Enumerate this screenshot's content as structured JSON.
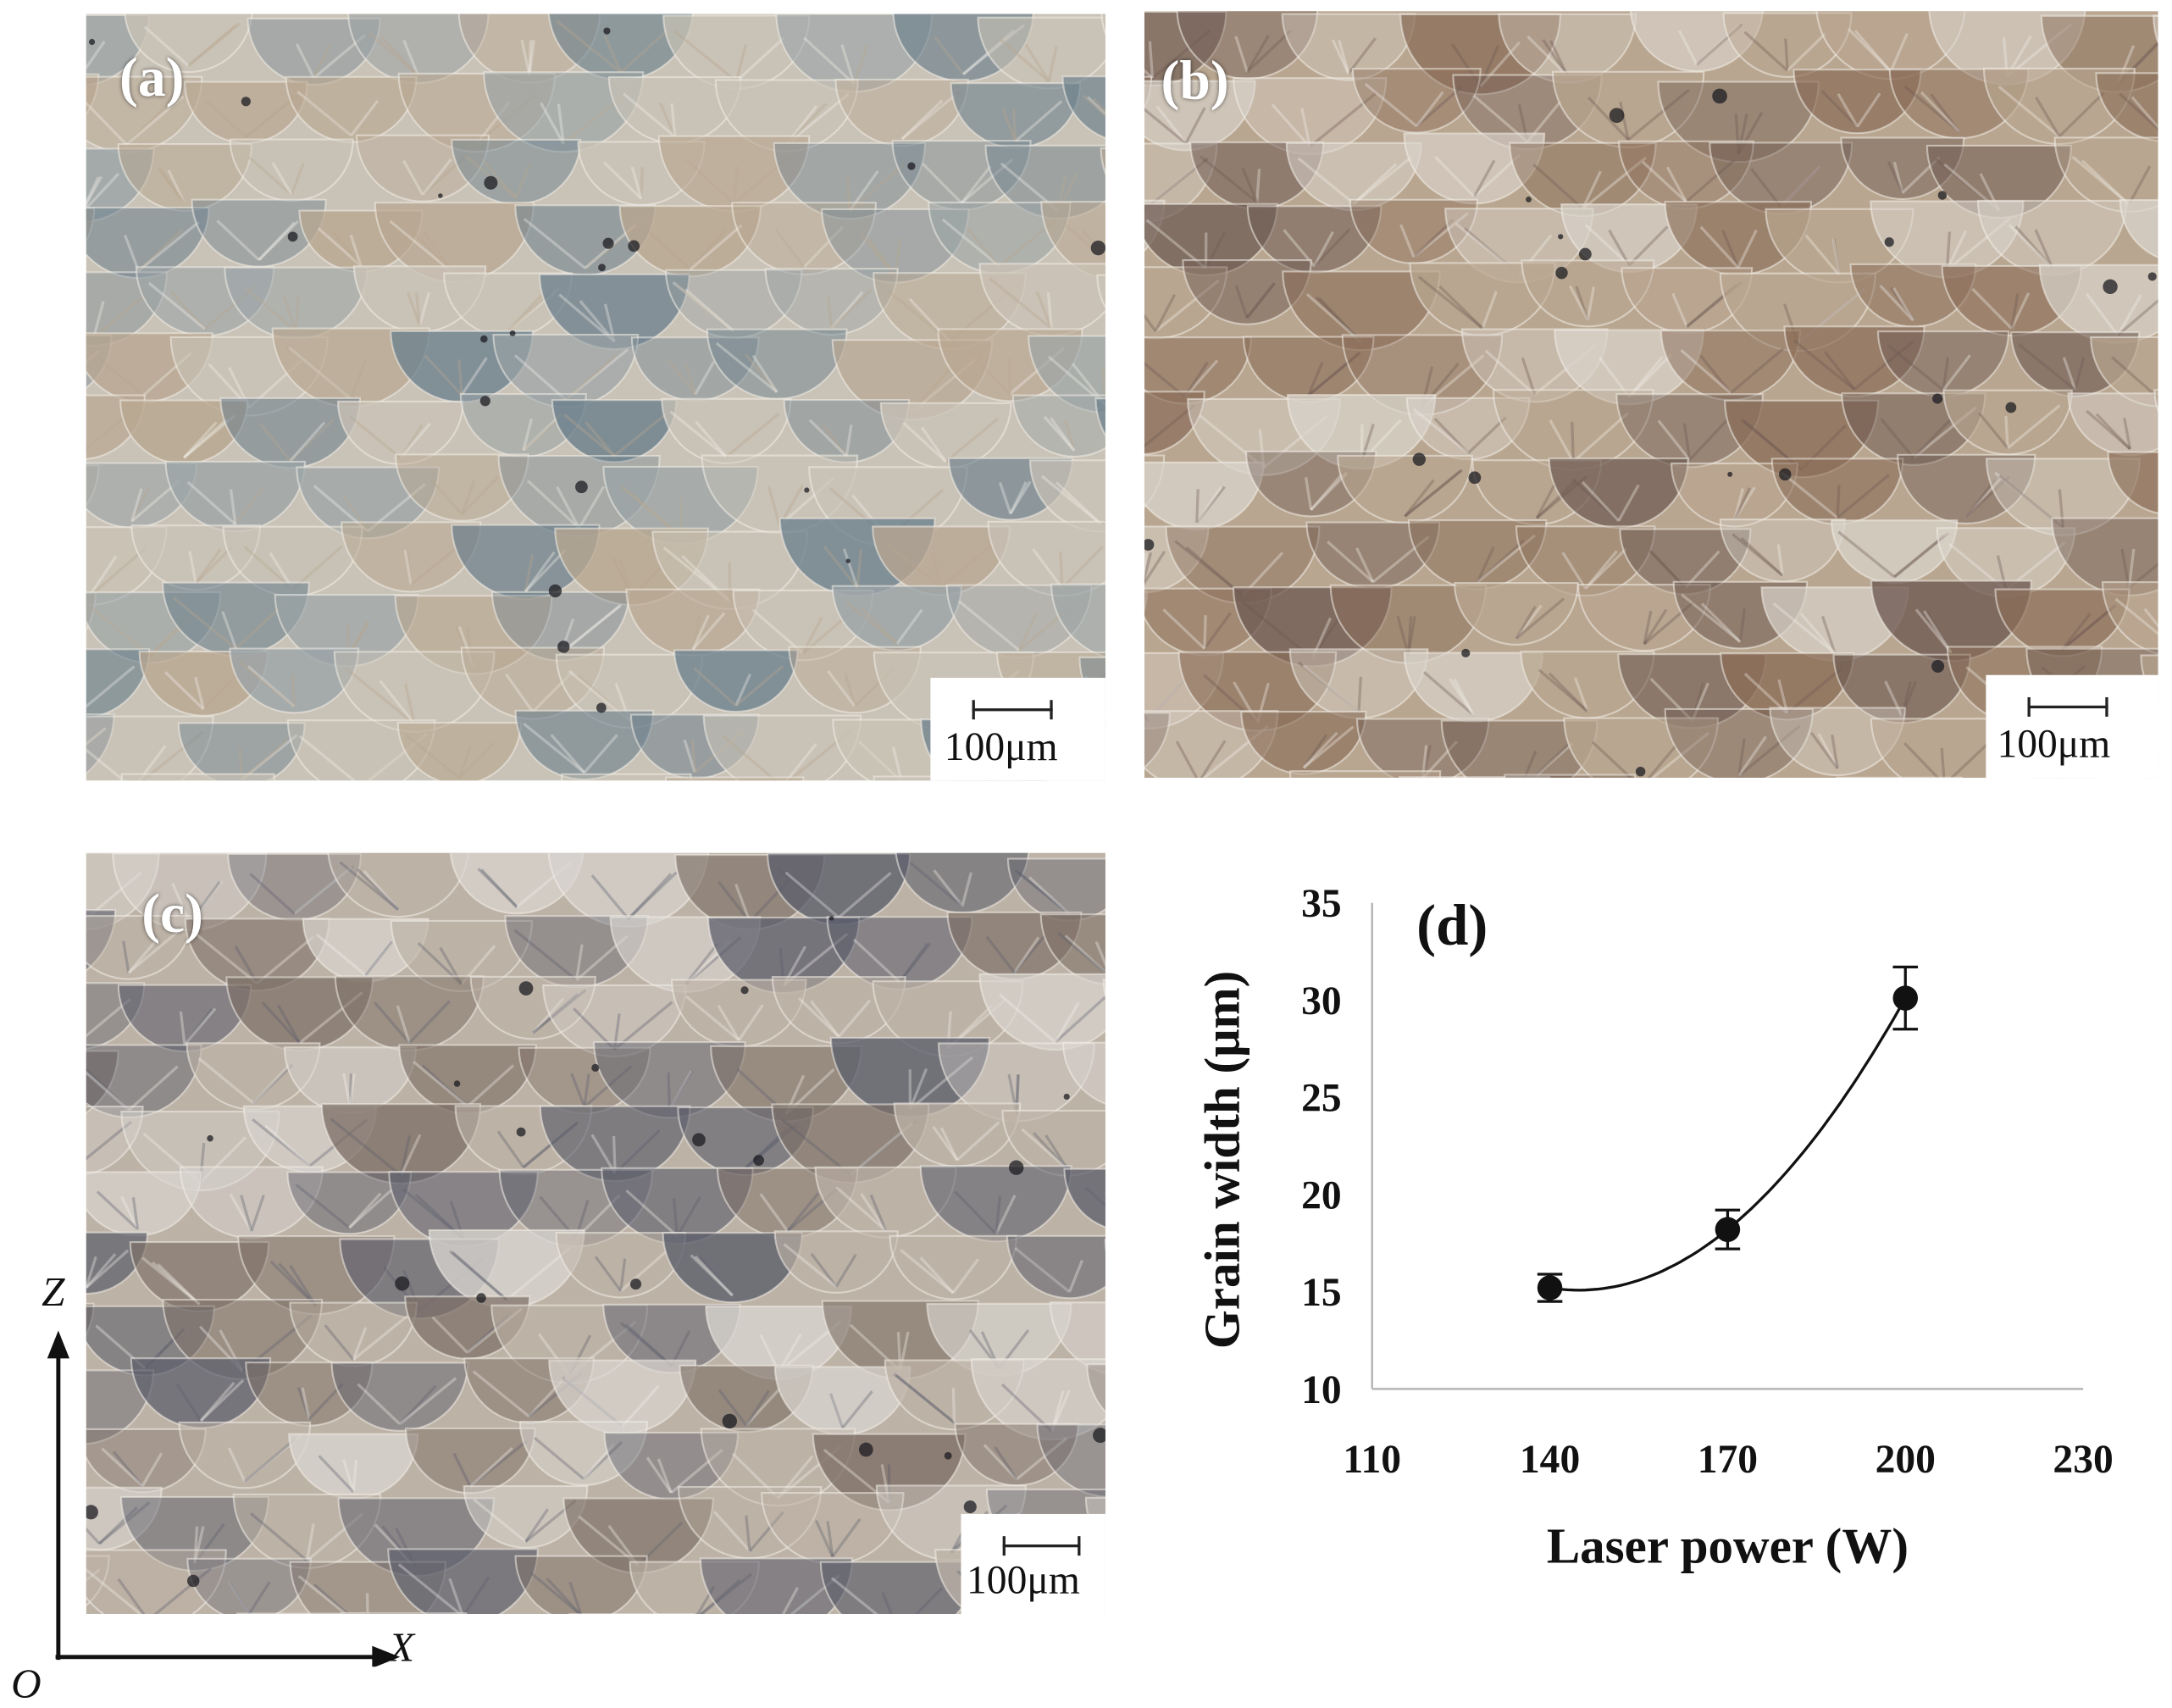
{
  "panels": {
    "a": {
      "label": "(a)",
      "scale_label": "100μm",
      "tone": [
        "#c9c2b6",
        "#9aa3a6",
        "#6b7f8c",
        "#b8a690"
      ]
    },
    "b": {
      "label": "(b)",
      "scale_label": "100μm",
      "tone": [
        "#b9a690",
        "#8a6d58",
        "#d9d3cb",
        "#6e5a52"
      ]
    },
    "c": {
      "label": "(c)",
      "scale_label": "100μm",
      "tone": [
        "#bdb2a6",
        "#7d6f66",
        "#d8d4cf",
        "#5d5f6c"
      ]
    }
  },
  "axes_indicator": {
    "z": "Z",
    "x": "X",
    "origin": "O"
  },
  "chart_data": {
    "type": "scatter",
    "panel_label": "(d)",
    "xlabel": "Laser power (W)",
    "ylabel": "Grain width (μm)",
    "xlim": [
      110,
      230
    ],
    "ylim": [
      10,
      35
    ],
    "xticks": [
      110,
      140,
      170,
      200,
      230
    ],
    "yticks": [
      10,
      15,
      20,
      25,
      30,
      35
    ],
    "grid": false,
    "points": [
      {
        "x": 140,
        "y": 15.2,
        "err": 0.7
      },
      {
        "x": 170,
        "y": 18.2,
        "err": 1.0
      },
      {
        "x": 200,
        "y": 30.1,
        "err": 1.6
      }
    ],
    "fit": "smooth trend curve"
  }
}
